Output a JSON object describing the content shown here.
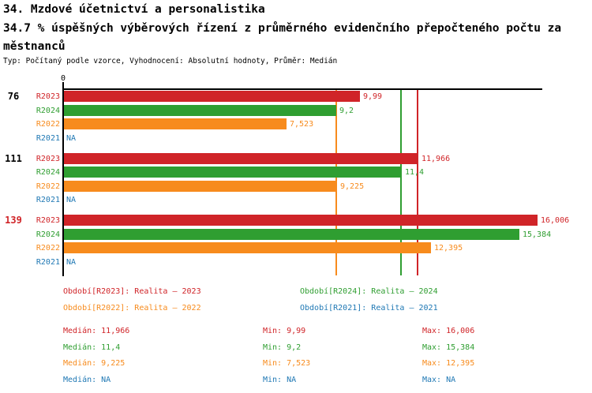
{
  "header": {
    "line1": "34. Mzdové účetnictví a personalistika",
    "line2": "34.7 % úspěšných výběrových řízení z průměrného evidenčního přepočteného počtu za",
    "line3": "městnanců",
    "meta": "Typ: Počítaný podle vzorce, Vyhodnocení: Absolutní hodnoty, Průměr: Medián"
  },
  "colors": {
    "R2023": "#d02428",
    "R2024": "#2f9e31",
    "R2022": "#f78b1d",
    "R2021": "#1f78b4",
    "text": "#000000",
    "axis": "#000000"
  },
  "chart_data": {
    "type": "bar",
    "orientation": "horizontal",
    "title": "34. Mzdové účetnictví a personalistika",
    "xlabel": "",
    "ylabel": "",
    "xlim": [
      0,
      16.16
    ],
    "axis_zero_label": "0",
    "grid": false,
    "legend_position": "bottom",
    "groups": [
      {
        "label": "76",
        "highlighted": false,
        "bars": [
          {
            "series": "R2023",
            "value": 9.99,
            "display": "9,99"
          },
          {
            "series": "R2024",
            "value": 9.2,
            "display": "9,2"
          },
          {
            "series": "R2022",
            "value": 7.523,
            "display": "7,523"
          },
          {
            "series": "R2021",
            "value": null,
            "display": "NA"
          }
        ]
      },
      {
        "label": "111",
        "highlighted": false,
        "bars": [
          {
            "series": "R2023",
            "value": 11.966,
            "display": "11,966"
          },
          {
            "series": "R2024",
            "value": 11.4,
            "display": "11,4"
          },
          {
            "series": "R2022",
            "value": 9.225,
            "display": "9,225"
          },
          {
            "series": "R2021",
            "value": null,
            "display": "NA"
          }
        ]
      },
      {
        "label": "139",
        "highlighted": true,
        "bars": [
          {
            "series": "R2023",
            "value": 16.006,
            "display": "16,006"
          },
          {
            "series": "R2024",
            "value": 15.384,
            "display": "15,384"
          },
          {
            "series": "R2022",
            "value": 12.395,
            "display": "12,395"
          },
          {
            "series": "R2021",
            "value": null,
            "display": "NA"
          }
        ]
      }
    ],
    "median_lines": [
      {
        "series": "R2022",
        "value": 9.225
      },
      {
        "series": "R2024",
        "value": 11.4
      },
      {
        "series": "R2023",
        "value": 11.966
      }
    ],
    "legend": [
      {
        "series": "R2023",
        "text": "Období[R2023]: Realita – 2023"
      },
      {
        "series": "R2024",
        "text": "Období[R2024]: Realita – 2024"
      },
      {
        "series": "R2022",
        "text": "Období[R2022]: Realita – 2022"
      },
      {
        "series": "R2021",
        "text": "Období[R2021]: Realita – 2021"
      }
    ],
    "stats": [
      {
        "series": "R2023",
        "median": "Medián: 11,966",
        "min": "Min: 9,99",
        "max": "Max: 16,006"
      },
      {
        "series": "R2024",
        "median": "Medián: 11,4",
        "min": "Min: 9,2",
        "max": "Max: 15,384"
      },
      {
        "series": "R2022",
        "median": "Medián: 9,225",
        "min": "Min: 7,523",
        "max": "Max: 12,395"
      },
      {
        "series": "R2021",
        "median": "Medián: NA",
        "min": "Min: NA",
        "max": "Max: NA"
      }
    ]
  }
}
